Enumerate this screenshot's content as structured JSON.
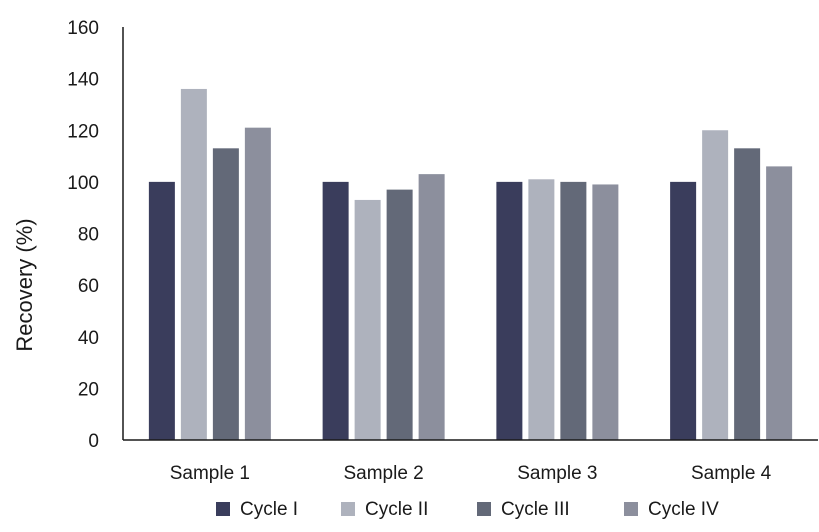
{
  "chart_data": {
    "type": "bar",
    "title": "",
    "xlabel": "",
    "ylabel": "Recovery (%)",
    "ylim": [
      0,
      160
    ],
    "yticks": [
      0,
      20,
      40,
      60,
      80,
      100,
      120,
      140,
      160
    ],
    "grid": false,
    "legend_position": "bottom",
    "categories": [
      "Sample 1",
      "Sample 2",
      "Sample 3",
      "Sample 4"
    ],
    "series": [
      {
        "name": "Cycle I",
        "color": "#3a3d5c",
        "values": [
          100,
          100,
          100,
          100
        ]
      },
      {
        "name": "Cycle II",
        "color": "#aeb2bd",
        "values": [
          136,
          93,
          101,
          120
        ]
      },
      {
        "name": "Cycle III",
        "color": "#636978",
        "values": [
          113,
          97,
          100,
          113
        ]
      },
      {
        "name": "Cycle IV",
        "color": "#8c8f9d",
        "values": [
          121,
          103,
          99,
          106
        ]
      }
    ]
  }
}
